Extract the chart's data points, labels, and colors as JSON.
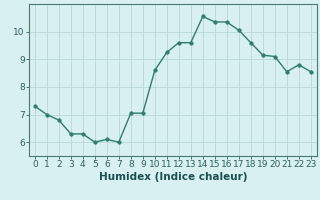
{
  "x": [
    0,
    1,
    2,
    3,
    4,
    5,
    6,
    7,
    8,
    9,
    10,
    11,
    12,
    13,
    14,
    15,
    16,
    17,
    18,
    19,
    20,
    21,
    22,
    23
  ],
  "y": [
    7.3,
    7.0,
    6.8,
    6.3,
    6.3,
    6.0,
    6.1,
    6.0,
    7.05,
    7.05,
    8.6,
    9.25,
    9.6,
    9.6,
    10.55,
    10.35,
    10.35,
    10.05,
    9.6,
    9.15,
    9.1,
    8.55,
    8.8,
    8.55
  ],
  "xlabel": "Humidex (Indice chaleur)",
  "xlim": [
    -0.5,
    23.5
  ],
  "ylim": [
    5.5,
    11.0
  ],
  "yticks": [
    6,
    7,
    8,
    9,
    10
  ],
  "xticks": [
    0,
    1,
    2,
    3,
    4,
    5,
    6,
    7,
    8,
    9,
    10,
    11,
    12,
    13,
    14,
    15,
    16,
    17,
    18,
    19,
    20,
    21,
    22,
    23
  ],
  "line_color": "#2e7d6e",
  "marker_size": 2.5,
  "bg_color": "#d8f0f0",
  "grid_color": "#b8d8d8",
  "axis_color": "#4a7a70",
  "tick_color": "#2e6060",
  "label_color": "#1a5050",
  "xlabel_fontsize": 7.5,
  "tick_fontsize": 6.5
}
